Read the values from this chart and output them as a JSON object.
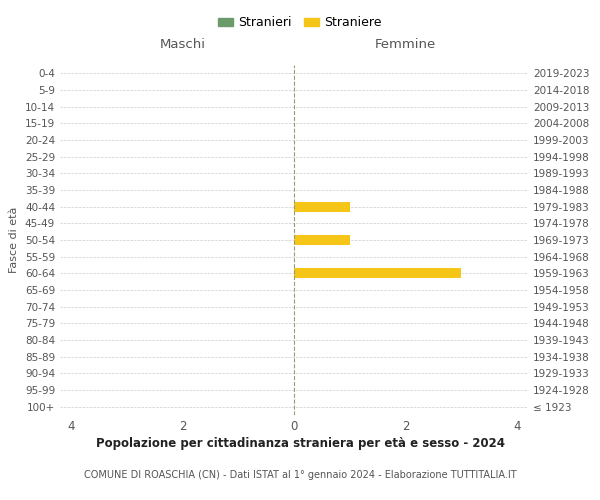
{
  "age_groups": [
    "100+",
    "95-99",
    "90-94",
    "85-89",
    "80-84",
    "75-79",
    "70-74",
    "65-69",
    "60-64",
    "55-59",
    "50-54",
    "45-49",
    "40-44",
    "35-39",
    "30-34",
    "25-29",
    "20-24",
    "15-19",
    "10-14",
    "5-9",
    "0-4"
  ],
  "birth_years": [
    "≤ 1923",
    "1924-1928",
    "1929-1933",
    "1934-1938",
    "1939-1943",
    "1944-1948",
    "1949-1953",
    "1954-1958",
    "1959-1963",
    "1964-1968",
    "1969-1973",
    "1974-1978",
    "1979-1983",
    "1984-1988",
    "1989-1993",
    "1994-1998",
    "1999-2003",
    "2004-2008",
    "2009-2013",
    "2014-2018",
    "2019-2023"
  ],
  "males": [
    0,
    0,
    0,
    0,
    0,
    0,
    0,
    0,
    0,
    0,
    0,
    0,
    0,
    0,
    0,
    0,
    0,
    0,
    0,
    0,
    0
  ],
  "females": [
    0,
    0,
    0,
    0,
    0,
    0,
    0,
    0,
    3,
    0,
    1,
    0,
    1,
    0,
    0,
    0,
    0,
    0,
    0,
    0,
    0
  ],
  "male_color": "#6B9B6B",
  "female_color": "#F5C518",
  "male_label": "Stranieri",
  "female_label": "Straniere",
  "title": "Popolazione per cittadinanza straniera per età e sesso - 2024",
  "subtitle": "COMUNE DI ROASCHIA (CN) - Dati ISTAT al 1° gennaio 2024 - Elaborazione TUTTITALIA.IT",
  "header_left": "Maschi",
  "header_right": "Femmine",
  "ylabel_left": "Fasce di età",
  "xlim": 4.2,
  "xticks": [
    -4,
    -2,
    0,
    2,
    4
  ],
  "xticklabels": [
    "4",
    "2",
    "0",
    "2",
    "4"
  ],
  "background_color": "#ffffff",
  "grid_color": "#cccccc",
  "center_line_color": "#999977",
  "text_color": "#555555"
}
